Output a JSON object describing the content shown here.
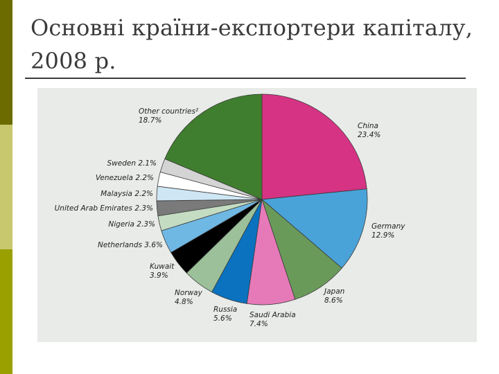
{
  "slide": {
    "title": "Основні країни-експортери капіталу, 2008 р."
  },
  "colors": {
    "strip_top": "#6b6b00",
    "strip_mid": "#c8c86e",
    "strip_bottom": "#9aa000",
    "panel_background": "#e8ebe8"
  },
  "chart_data": {
    "type": "pie",
    "title": "",
    "slices": [
      {
        "label": "China",
        "value": 23.4,
        "display": "23.4%",
        "color": "#d63384"
      },
      {
        "label": "Germany",
        "value": 12.9,
        "display": "12.9%",
        "color": "#4aa3d8"
      },
      {
        "label": "Japan",
        "value": 8.6,
        "display": "8.6%",
        "color": "#6a9a5a"
      },
      {
        "label": "Saudi Arabia",
        "value": 7.4,
        "display": "7.4%",
        "color": "#e67ab8"
      },
      {
        "label": "Russia",
        "value": 5.6,
        "display": "5.6%",
        "color": "#0a72bf"
      },
      {
        "label": "Norway",
        "value": 4.8,
        "display": "4.8%",
        "color": "#9bc09a"
      },
      {
        "label": "Kuwait",
        "value": 3.9,
        "display": "3.9%",
        "color": "#000000"
      },
      {
        "label": "Netherlands",
        "value": 3.6,
        "display": "3.6%",
        "color": "#6fb8e4"
      },
      {
        "label": "Nigeria",
        "value": 2.3,
        "display": "2.3%",
        "color": "#c4dcc2"
      },
      {
        "label": "United Arab Emirates",
        "value": 2.3,
        "display": "2.3%",
        "color": "#7a7a7a"
      },
      {
        "label": "Malaysia",
        "value": 2.2,
        "display": "2.2%",
        "color": "#cfe6f4"
      },
      {
        "label": "Venezuela",
        "value": 2.2,
        "display": "2.2%",
        "color": "#ffffff"
      },
      {
        "label": "Sweden",
        "value": 2.1,
        "display": "2.1%",
        "color": "#d4d4d4"
      },
      {
        "label": "Other countries²",
        "value": 18.7,
        "display": "18.7%",
        "color": "#3f7e2e"
      }
    ]
  }
}
